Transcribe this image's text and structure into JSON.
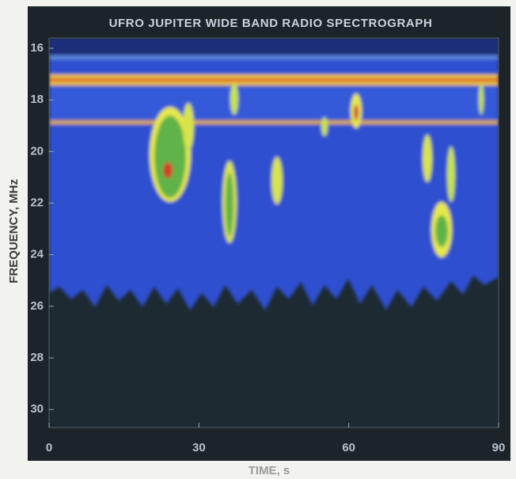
{
  "chart_data": {
    "type": "spectrogram",
    "title": "UFRO JUPITER WIDE BAND RADIO SPECTROGRAPH",
    "x_label": "TIME, s",
    "y_label": "FREQUENCY, MHz",
    "xlim": [
      0,
      90
    ],
    "xticks": [
      0,
      30,
      60,
      90
    ],
    "ylim": [
      15.6,
      30.7
    ],
    "yticks": [
      16,
      18,
      20,
      22,
      24,
      26,
      28,
      30
    ],
    "y_inverted": true,
    "grid": false
  }
}
